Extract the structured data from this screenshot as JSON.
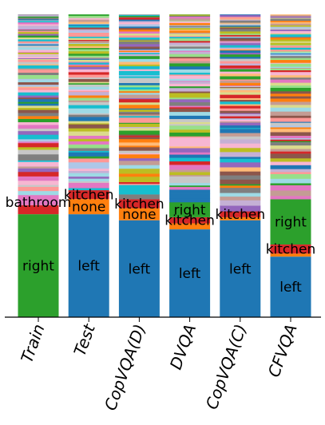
{
  "chart_data": {
    "type": "bar",
    "stacked": true,
    "normalized": true,
    "categories": [
      "Train",
      "Test",
      "CopVQA(D)",
      "DVQA",
      "CopVQA(C)",
      "CFVQA"
    ],
    "ylim": [
      0,
      1
    ],
    "grid": false,
    "legend": "none",
    "bars": [
      {
        "name": "Train",
        "segments": [
          {
            "label": "right",
            "value": 0.34,
            "color": "#2ca02c"
          },
          {
            "label": "",
            "value": 0.03,
            "color": "#d62728"
          },
          {
            "label": "bathroom",
            "value": 0.02,
            "color": "#e377c2"
          }
        ]
      },
      {
        "name": "Test",
        "segments": [
          {
            "label": "left",
            "value": 0.34,
            "color": "#1f77b4"
          },
          {
            "label": "none",
            "value": 0.05,
            "color": "#ff7f0e"
          },
          {
            "label": "kitchen",
            "value": 0.03,
            "color": "#d62728"
          }
        ]
      },
      {
        "name": "CopVQA(D)",
        "segments": [
          {
            "label": "left",
            "value": 0.32,
            "color": "#1f77b4"
          },
          {
            "label": "none",
            "value": 0.04,
            "color": "#ff7f0e"
          },
          {
            "label": "kitchen",
            "value": 0.03,
            "color": "#d62728"
          }
        ]
      },
      {
        "name": "DVQA",
        "segments": [
          {
            "label": "left",
            "value": 0.29,
            "color": "#1f77b4"
          },
          {
            "label": "",
            "value": 0.02,
            "color": "#ff7f0e"
          },
          {
            "label": "kitchen",
            "value": 0.02,
            "color": "#d62728"
          },
          {
            "label": "right",
            "value": 0.05,
            "color": "#2ca02c"
          }
        ]
      },
      {
        "name": "CopVQA(C)",
        "segments": [
          {
            "label": "left",
            "value": 0.32,
            "color": "#1f77b4"
          },
          {
            "label": "",
            "value": 0.01,
            "color": "#ff7f0e"
          },
          {
            "label": "kitchen",
            "value": 0.02,
            "color": "#d62728"
          }
        ]
      },
      {
        "name": "CFVQA",
        "segments": [
          {
            "label": "left",
            "value": 0.2,
            "color": "#1f77b4"
          },
          {
            "label": "",
            "value": 0.01,
            "color": "#ff7f0e"
          },
          {
            "label": "kitchen",
            "value": 0.03,
            "color": "#d62728"
          },
          {
            "label": "right",
            "value": 0.15,
            "color": "#2ca02c"
          }
        ]
      }
    ],
    "long_tail_palette": [
      "#1f77b4",
      "#ff7f0e",
      "#2ca02c",
      "#d62728",
      "#9467bd",
      "#8c564b",
      "#e377c2",
      "#7f7f7f",
      "#bcbd22",
      "#17becf"
    ]
  }
}
